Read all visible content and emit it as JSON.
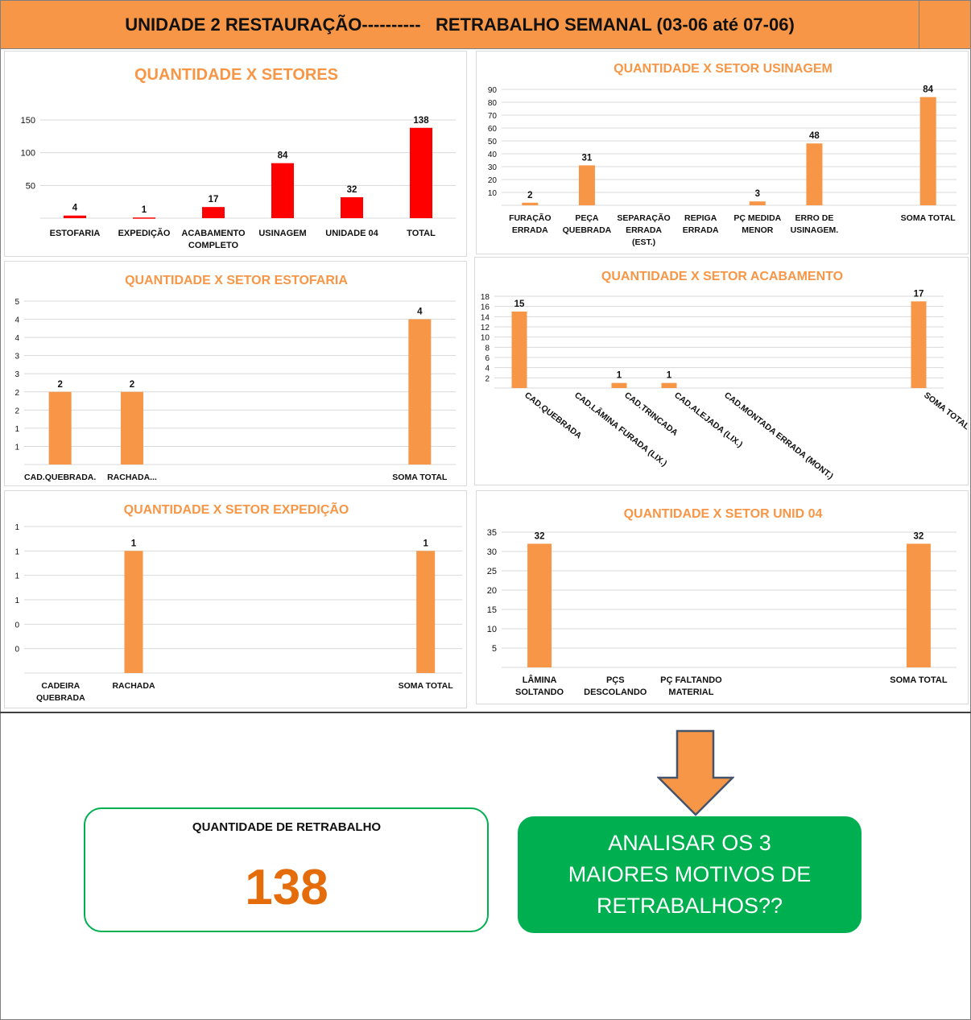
{
  "header": {
    "title": "UNIDADE 2 RESTAURAÇÃO----------   RETRABALHO SEMANAL (03-06 até 07-06)"
  },
  "colors": {
    "header_bg": "#f79646",
    "red_bar": "#ff0000",
    "orange_bar": "#f79646",
    "title_orange": "#f79646",
    "green": "#00b050",
    "value_orange": "#e46c0a"
  },
  "summary": {
    "label": "QUANTIDADE DE RETRABALHO",
    "value": "138"
  },
  "action": {
    "text": "ANALISAR OS 3 MAIORES MOTIVOS DE RETRABALHOS??",
    "arrow_icon": "arrow-down-icon"
  },
  "chart_data": [
    {
      "id": "setores",
      "type": "bar",
      "title": "QUANTIDADE X SETORES",
      "categories": [
        "ESTOFARIA",
        "EXPEDIÇÃO",
        "ACABAMENTO COMPLETO",
        "USINAGEM",
        "UNIDADE 04",
        "TOTAL"
      ],
      "values": [
        4,
        1,
        17,
        84,
        32,
        138
      ],
      "value_labels": [
        "4",
        "1",
        "17",
        "84",
        "32",
        "138"
      ],
      "yticks": [
        "50",
        "100",
        "150"
      ],
      "ylim": [
        0,
        150
      ],
      "color": "#ff0000",
      "grid": true
    },
    {
      "id": "usinagem",
      "type": "bar",
      "title": "QUANTIDADE X SETOR USINAGEM",
      "categories": [
        "FURAÇÃO ERRADA",
        "PEÇA QUEBRADA",
        "SEPARAÇÃO ERRADA (EST.)",
        "REPIGA ERRADA",
        "PÇ MEDIDA MENOR",
        "ERRO DE USINAGEM.",
        "",
        "SOMA TOTAL"
      ],
      "values": [
        2,
        31,
        0,
        0,
        3,
        48,
        0,
        84
      ],
      "value_labels": [
        "2",
        "31",
        "",
        "",
        "3",
        "48",
        "",
        "84"
      ],
      "yticks": [
        "10",
        "20",
        "30",
        "40",
        "50",
        "60",
        "70",
        "80",
        "90"
      ],
      "ylim": [
        0,
        90
      ],
      "color": "#f79646",
      "grid": true
    },
    {
      "id": "estofaria",
      "type": "bar",
      "title": "QUANTIDADE X SETOR ESTOFARIA",
      "categories": [
        "CAD.QUEBRADA.",
        "RACHADA...",
        "",
        "",
        "",
        "SOMA TOTAL"
      ],
      "values": [
        2,
        2,
        0,
        0,
        0,
        4
      ],
      "value_labels": [
        "2",
        "2",
        "",
        "",
        "",
        "4"
      ],
      "yticks": [
        "1",
        "1",
        "2",
        "2",
        "3",
        "3",
        "4",
        "4",
        "5"
      ],
      "ylim": [
        0,
        4.5
      ],
      "color": "#f79646",
      "grid": true
    },
    {
      "id": "acabamento",
      "type": "bar",
      "title": "QUANTIDADE X SETOR ACABAMENTO",
      "categories": [
        "CAD.QUEBRADA",
        "CAD.LÂMINA FURADA (LIX.)",
        "CAD.TRINCADA",
        "CAD.ALEJADA (LIX.)",
        "CAD.MONTADA ERRADA (MONT.)",
        "",
        "",
        "",
        "SOMA TOTAL"
      ],
      "values": [
        15,
        0,
        1,
        1,
        0,
        0,
        0,
        0,
        17
      ],
      "value_labels": [
        "15",
        "",
        "1",
        "1",
        "",
        "",
        "",
        "",
        "17"
      ],
      "yticks": [
        "2",
        "4",
        "6",
        "8",
        "10",
        "12",
        "14",
        "16",
        "18"
      ],
      "ylim": [
        0,
        18
      ],
      "color": "#f79646",
      "grid": true
    },
    {
      "id": "expedicao",
      "type": "bar",
      "title": "QUANTIDADE X SETOR EXPEDIÇÃO",
      "categories": [
        "CADEIRA QUEBRADA",
        "RACHADA",
        "",
        "",
        "",
        "SOMA TOTAL"
      ],
      "values": [
        0,
        1,
        0,
        0,
        0,
        1
      ],
      "value_labels": [
        "",
        "1",
        "",
        "",
        "",
        "1"
      ],
      "yticks": [
        "0",
        "0",
        "1",
        "1",
        "1",
        "1"
      ],
      "ylim": [
        0,
        1.2
      ],
      "color": "#f79646",
      "grid": true
    },
    {
      "id": "unid04",
      "type": "bar",
      "title": "QUANTIDADE X SETOR UNID 04",
      "categories": [
        "LÂMINA SOLTANDO",
        "PÇS DESCOLANDO",
        "PÇ FALTANDO MATERIAL",
        "",
        "",
        "SOMA TOTAL"
      ],
      "values": [
        32,
        0,
        0,
        0,
        0,
        32
      ],
      "value_labels": [
        "32",
        "",
        "",
        "",
        "",
        "32"
      ],
      "yticks": [
        "5",
        "10",
        "15",
        "20",
        "25",
        "30",
        "35"
      ],
      "ylim": [
        0,
        35
      ],
      "color": "#f79646",
      "grid": true
    }
  ]
}
